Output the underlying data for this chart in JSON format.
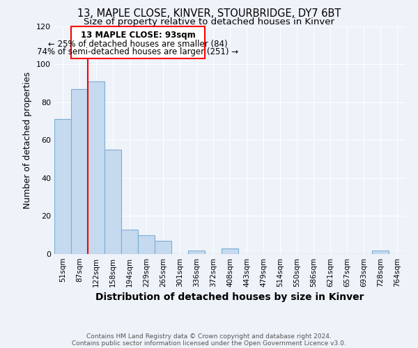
{
  "title": "13, MAPLE CLOSE, KINVER, STOURBRIDGE, DY7 6BT",
  "subtitle": "Size of property relative to detached houses in Kinver",
  "xlabel": "Distribution of detached houses by size in Kinver",
  "ylabel": "Number of detached properties",
  "footer_line1": "Contains HM Land Registry data © Crown copyright and database right 2024.",
  "footer_line2": "Contains public sector information licensed under the Open Government Licence v3.0.",
  "categories": [
    "51sqm",
    "87sqm",
    "122sqm",
    "158sqm",
    "194sqm",
    "229sqm",
    "265sqm",
    "301sqm",
    "336sqm",
    "372sqm",
    "408sqm",
    "443sqm",
    "479sqm",
    "514sqm",
    "550sqm",
    "586sqm",
    "621sqm",
    "657sqm",
    "693sqm",
    "728sqm",
    "764sqm"
  ],
  "values": [
    71,
    87,
    91,
    55,
    13,
    10,
    7,
    0,
    2,
    0,
    3,
    0,
    0,
    0,
    0,
    0,
    0,
    0,
    0,
    2,
    0
  ],
  "bar_color": "#c5d9ef",
  "bar_edge_color": "#7bafd4",
  "ylim": [
    0,
    120
  ],
  "yticks": [
    0,
    20,
    40,
    60,
    80,
    100,
    120
  ],
  "property_line_x": 1.5,
  "annotation_title": "13 MAPLE CLOSE: 93sqm",
  "annotation_line2": "← 25% of detached houses are smaller (84)",
  "annotation_line3": "74% of semi-detached houses are larger (251) →",
  "background_color": "#eef2f9",
  "grid_color": "#ffffff",
  "title_fontsize": 10.5,
  "subtitle_fontsize": 9.5,
  "annotation_fontsize": 8.5,
  "tick_fontsize": 7.5,
  "ylabel_fontsize": 9,
  "xlabel_fontsize": 10,
  "footer_fontsize": 6.5
}
